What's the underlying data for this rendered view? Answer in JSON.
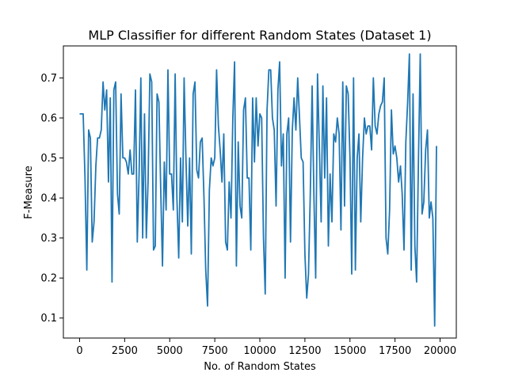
{
  "chart_data": {
    "type": "line",
    "title": "MLP Classifier for different Random States (Dataset 1)",
    "xlabel": "No. of Random States",
    "ylabel": "F-Measure",
    "xlim": [
      -900,
      20900
    ],
    "ylim": [
      0.05,
      0.78
    ],
    "xticks": [
      0,
      2500,
      5000,
      7500,
      10000,
      12500,
      15000,
      17500,
      20000
    ],
    "yticks": [
      0.1,
      0.2,
      0.3,
      0.4,
      0.5,
      0.6,
      0.7
    ],
    "ytick_labels": [
      "0.1",
      "0.2",
      "0.3",
      "0.4",
      "0.5",
      "0.6",
      "0.7"
    ],
    "grid": false,
    "line_color": "#1f77b4",
    "series": [
      {
        "x": [
          0,
          100,
          200,
          300,
          400,
          500,
          600,
          700,
          800,
          900,
          1000,
          1100,
          1200,
          1300,
          1400,
          1500,
          1600,
          1700,
          1800,
          1900,
          2000,
          2100,
          2200,
          2300,
          2400,
          2500,
          2600,
          2700,
          2800,
          2900,
          3000,
          3100,
          3200,
          3300,
          3400,
          3500,
          3600,
          3700,
          3800,
          3900,
          4000,
          4100,
          4200,
          4300,
          4400,
          4500,
          4600,
          4700,
          4800,
          4900,
          5000,
          5100,
          5200,
          5300,
          5400,
          5500,
          5600,
          5700,
          5800,
          5900,
          6000,
          6100,
          6200,
          6300,
          6400,
          6500,
          6600,
          6700,
          6800,
          6900,
          7000,
          7100,
          7200,
          7300,
          7400,
          7500,
          7600,
          7700,
          7800,
          7900,
          8000,
          8100,
          8200,
          8300,
          8400,
          8500,
          8600,
          8700,
          8800,
          8900,
          9000,
          9100,
          9200,
          9300,
          9400,
          9500,
          9600,
          9700,
          9800,
          9900,
          10000,
          10100,
          10200,
          10300,
          10400,
          10500,
          10600,
          10700,
          10800,
          10900,
          11000,
          11100,
          11200,
          11300,
          11400,
          11500,
          11600,
          11700,
          11800,
          11900,
          12000,
          12100,
          12200,
          12300,
          12400,
          12500,
          12600,
          12700,
          12800,
          12900,
          13000,
          13100,
          13200,
          13300,
          13400,
          13500,
          13600,
          13700,
          13800,
          13900,
          14000,
          14100,
          14200,
          14300,
          14400,
          14500,
          14600,
          14700,
          14800,
          14900,
          15000,
          15100,
          15200,
          15300,
          15400,
          15500,
          15600,
          15700,
          15800,
          15900,
          16000,
          16100,
          16200,
          16300,
          16400,
          16500,
          16600,
          16700,
          16800,
          16900,
          17000,
          17100,
          17200,
          17300,
          17400,
          17500,
          17600,
          17700,
          17800,
          17900,
          18000,
          18100,
          18200,
          18300,
          18400,
          18500,
          18600,
          18700,
          18800,
          18900,
          19000,
          19100,
          19200,
          19300,
          19400,
          19500,
          19600,
          19700,
          19800
        ],
        "y": [
          0.61,
          0.61,
          0.61,
          0.45,
          0.22,
          0.57,
          0.55,
          0.29,
          0.34,
          0.48,
          0.55,
          0.55,
          0.57,
          0.69,
          0.62,
          0.67,
          0.44,
          0.65,
          0.19,
          0.67,
          0.69,
          0.41,
          0.36,
          0.66,
          0.5,
          0.5,
          0.49,
          0.46,
          0.52,
          0.46,
          0.46,
          0.67,
          0.29,
          0.46,
          0.7,
          0.3,
          0.61,
          0.3,
          0.44,
          0.71,
          0.69,
          0.27,
          0.28,
          0.66,
          0.64,
          0.42,
          0.23,
          0.49,
          0.37,
          0.72,
          0.46,
          0.46,
          0.37,
          0.71,
          0.4,
          0.25,
          0.5,
          0.34,
          0.7,
          0.5,
          0.33,
          0.5,
          0.26,
          0.66,
          0.69,
          0.47,
          0.45,
          0.54,
          0.55,
          0.4,
          0.22,
          0.13,
          0.42,
          0.5,
          0.48,
          0.5,
          0.72,
          0.58,
          0.52,
          0.44,
          0.56,
          0.29,
          0.27,
          0.44,
          0.35,
          0.6,
          0.74,
          0.23,
          0.54,
          0.38,
          0.35,
          0.62,
          0.65,
          0.45,
          0.45,
          0.27,
          0.65,
          0.49,
          0.65,
          0.53,
          0.61,
          0.6,
          0.3,
          0.16,
          0.62,
          0.72,
          0.72,
          0.6,
          0.57,
          0.38,
          0.67,
          0.74,
          0.48,
          0.56,
          0.2,
          0.56,
          0.6,
          0.29,
          0.57,
          0.65,
          0.57,
          0.7,
          0.6,
          0.5,
          0.49,
          0.26,
          0.15,
          0.21,
          0.41,
          0.68,
          0.4,
          0.2,
          0.71,
          0.53,
          0.34,
          0.68,
          0.45,
          0.65,
          0.28,
          0.46,
          0.34,
          0.56,
          0.54,
          0.6,
          0.56,
          0.32,
          0.69,
          0.38,
          0.68,
          0.66,
          0.5,
          0.21,
          0.7,
          0.22,
          0.5,
          0.56,
          0.34,
          0.5,
          0.6,
          0.56,
          0.58,
          0.58,
          0.52,
          0.7,
          0.58,
          0.56,
          0.61,
          0.63,
          0.64,
          0.7,
          0.3,
          0.26,
          0.37,
          0.62,
          0.51,
          0.53,
          0.5,
          0.44,
          0.48,
          0.41,
          0.27,
          0.54,
          0.64,
          0.76,
          0.22,
          0.66,
          0.28,
          0.19,
          0.49,
          0.76,
          0.36,
          0.39,
          0.52,
          0.57,
          0.35,
          0.39,
          0.35,
          0.08,
          0.53
        ]
      }
    ]
  }
}
